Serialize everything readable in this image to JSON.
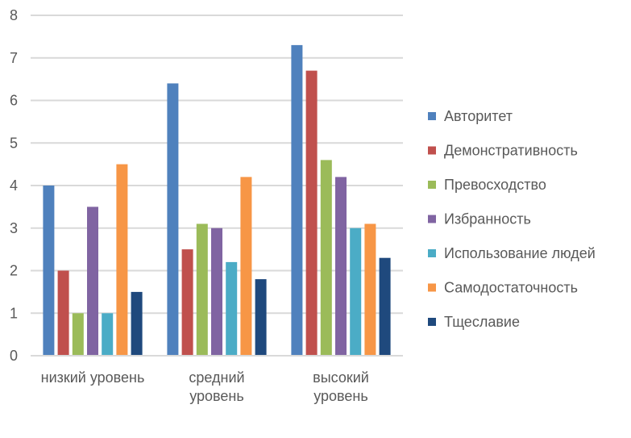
{
  "chart_data": {
    "type": "bar",
    "title": "",
    "xlabel": "",
    "ylabel": "",
    "ylim": [
      0,
      8
    ],
    "yticks": [
      0,
      1,
      2,
      3,
      4,
      5,
      6,
      7,
      8
    ],
    "grid": true,
    "legend_position": "right",
    "categories": [
      [
        "низкий уровень"
      ],
      [
        "средний",
        "уровень"
      ],
      [
        "высокий",
        "уровень"
      ]
    ],
    "series": [
      {
        "name": "Авторитет",
        "color": "#4F81BD",
        "values": [
          4.0,
          6.4,
          7.3
        ]
      },
      {
        "name": "Демонстративность",
        "color": "#C0504D",
        "values": [
          2.0,
          2.5,
          6.7
        ]
      },
      {
        "name": "Превосходство",
        "color": "#9BBB59",
        "values": [
          1.0,
          3.1,
          4.6
        ]
      },
      {
        "name": "Избранность",
        "color": "#8064A2",
        "values": [
          3.5,
          3.0,
          4.2
        ]
      },
      {
        "name": "Использование людей",
        "color": "#4BACC6",
        "values": [
          1.0,
          2.2,
          3.0
        ]
      },
      {
        "name": "Самодостаточность",
        "color": "#F79646",
        "values": [
          4.5,
          4.2,
          3.1
        ]
      },
      {
        "name": "Тщеславие",
        "color": "#1F497D",
        "values": [
          1.5,
          1.8,
          2.3
        ]
      }
    ]
  }
}
